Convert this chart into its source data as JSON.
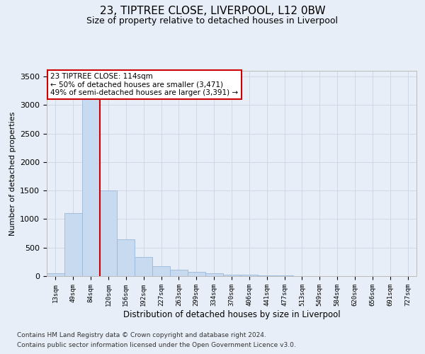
{
  "title": "23, TIPTREE CLOSE, LIVERPOOL, L12 0BW",
  "subtitle": "Size of property relative to detached houses in Liverpool",
  "xlabel": "Distribution of detached houses by size in Liverpool",
  "ylabel": "Number of detached properties",
  "footnote1": "Contains HM Land Registry data © Crown copyright and database right 2024.",
  "footnote2": "Contains public sector information licensed under the Open Government Licence v3.0.",
  "bin_labels": [
    "13sqm",
    "49sqm",
    "84sqm",
    "120sqm",
    "156sqm",
    "192sqm",
    "227sqm",
    "263sqm",
    "299sqm",
    "334sqm",
    "370sqm",
    "406sqm",
    "441sqm",
    "477sqm",
    "513sqm",
    "549sqm",
    "584sqm",
    "620sqm",
    "656sqm",
    "691sqm",
    "727sqm"
  ],
  "bar_values": [
    50,
    1100,
    3400,
    1500,
    650,
    330,
    180,
    110,
    80,
    50,
    30,
    20,
    15,
    10,
    5,
    3,
    2,
    1,
    1,
    0,
    0
  ],
  "bar_color": "#c8daf0",
  "bar_edge_color": "#9ab8d8",
  "vline_color": "#cc0000",
  "vline_position": 2.5,
  "annotation_box_text": "23 TIPTREE CLOSE: 114sqm\n← 50% of detached houses are smaller (3,471)\n49% of semi-detached houses are larger (3,391) →",
  "ylim": [
    0,
    3600
  ],
  "yticks": [
    0,
    500,
    1000,
    1500,
    2000,
    2500,
    3000,
    3500
  ],
  "grid_color": "#d0d8e8",
  "background_color": "#e8eef8",
  "title_fontsize": 11,
  "subtitle_fontsize": 9,
  "footnote_fontsize": 6.5
}
